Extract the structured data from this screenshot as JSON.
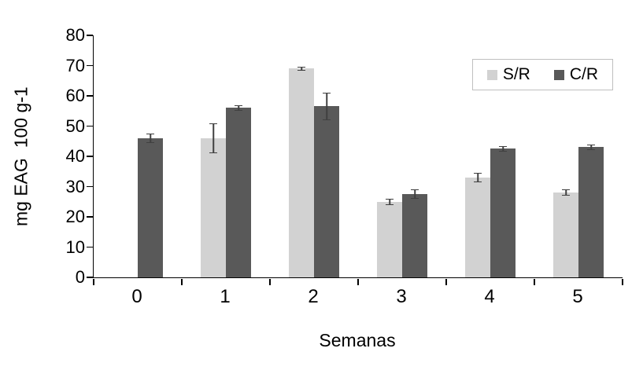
{
  "chart_data": {
    "type": "bar",
    "title": "",
    "xlabel": "Semanas",
    "ylabel": "mg EAG  100 g-1",
    "categories": [
      "0",
      "1",
      "2",
      "3",
      "4",
      "5"
    ],
    "series": [
      {
        "name": "S/R",
        "color": "#d2d2d2",
        "values": [
          null,
          46,
          69,
          25,
          33,
          28
        ],
        "errors": [
          null,
          5,
          0.7,
          1,
          1.5,
          1
        ]
      },
      {
        "name": "C/R",
        "color": "#595959",
        "values": [
          46,
          56,
          56.5,
          27.5,
          42.5,
          43
        ],
        "errors": [
          1.5,
          1,
          4.5,
          1.5,
          1,
          1
        ]
      }
    ],
    "ylim": [
      0,
      80
    ],
    "ytick_step": 10,
    "yticks": [
      "0",
      "10",
      "20",
      "30",
      "40",
      "50",
      "60",
      "70",
      "80"
    ],
    "grid": false,
    "legend_position": "top-right",
    "error_bar_color": "#404040",
    "axis_color": "#000000",
    "background": "#ffffff"
  }
}
